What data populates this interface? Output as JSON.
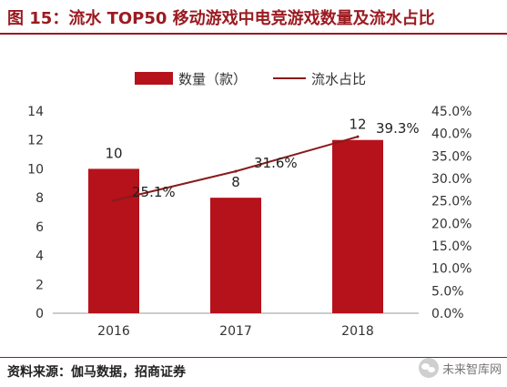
{
  "figure": {
    "title": "图 15：流水 TOP50 移动游戏中电竞游戏数量及流水占比",
    "source": "资料来源：伽马数据，招商证券",
    "watermark": "未来智库网"
  },
  "colors": {
    "bar": "#b5121b",
    "line": "#8b1a1a",
    "accent": "#9b1b21"
  },
  "chart_data": {
    "type": "bar",
    "categories": [
      "2016",
      "2017",
      "2018"
    ],
    "series": [
      {
        "name": "数量（款）",
        "kind": "bar",
        "axis": "left",
        "values": [
          10,
          8,
          12
        ],
        "labels": [
          "10",
          "8",
          "12"
        ]
      },
      {
        "name": "流水占比",
        "kind": "line",
        "axis": "right",
        "values": [
          25.1,
          31.6,
          39.3
        ],
        "labels": [
          "25.1%",
          "31.6%",
          "39.3%"
        ]
      }
    ],
    "y_left": {
      "min": 0,
      "max": 14,
      "ticks": [
        "0",
        "2",
        "4",
        "6",
        "8",
        "10",
        "12",
        "14"
      ]
    },
    "y_right": {
      "min": 0,
      "max": 45,
      "ticks": [
        "0.0%",
        "5.0%",
        "10.0%",
        "15.0%",
        "20.0%",
        "25.0%",
        "30.0%",
        "35.0%",
        "40.0%",
        "45.0%"
      ]
    },
    "legend_position": "top",
    "grid": false
  }
}
